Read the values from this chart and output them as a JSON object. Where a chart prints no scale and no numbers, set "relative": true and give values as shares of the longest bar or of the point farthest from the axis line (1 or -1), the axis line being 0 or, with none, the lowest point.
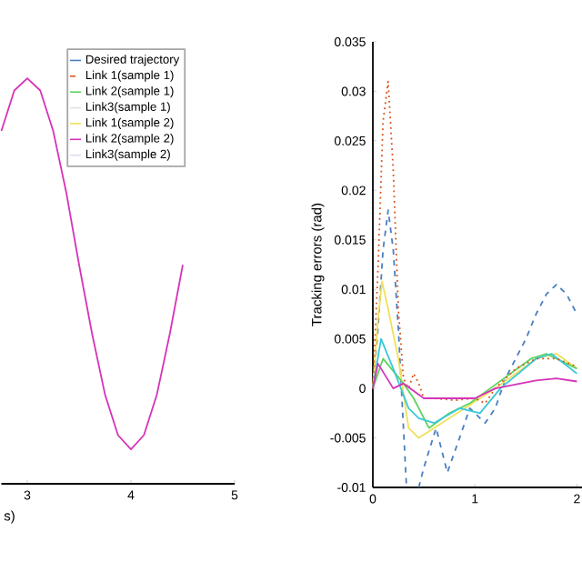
{
  "chart_data": [
    {
      "type": "line",
      "relative": true,
      "xlabel": "s)",
      "xlim": [
        2.75,
        5
      ],
      "xticks": [
        3,
        4,
        5
      ],
      "tick_labels": "x",
      "legend": "top right",
      "grid": false,
      "marker": "none",
      "x": [
        2.75,
        2.875,
        3,
        3.125,
        3.25,
        3.375,
        3.5,
        3.625,
        3.75,
        3.875,
        4,
        4.125,
        4.25,
        4.375,
        4.5
      ],
      "series": [
        {
          "name": "Desired trajectory",
          "color": "#4a7fc0",
          "line_style": "solid",
          "values": [
            null,
            null,
            null,
            null,
            null,
            null,
            null,
            null,
            null,
            null,
            null,
            null,
            null,
            null,
            null
          ]
        },
        {
          "name": "Link 1(sample 1)",
          "color": "#d95319",
          "line_style": "dashed",
          "values": [
            null,
            null,
            null,
            null,
            null,
            null,
            null,
            null,
            null,
            null,
            null,
            null,
            null,
            null,
            null
          ]
        },
        {
          "name": "Link 2(sample 1)",
          "color": "#5fd35f",
          "line_style": "solid",
          "values": [
            null,
            null,
            null,
            null,
            null,
            null,
            null,
            null,
            null,
            null,
            null,
            null,
            null,
            null,
            null
          ]
        },
        {
          "name": "Link3(sample 1)",
          "color": "#e2e2e2",
          "line_style": "solid",
          "values": [
            null,
            null,
            null,
            null,
            null,
            null,
            null,
            null,
            null,
            null,
            null,
            null,
            null,
            null,
            null
          ]
        },
        {
          "name": "Link 1(sample 2)",
          "color": "#f0e05a",
          "line_style": "solid",
          "values": [
            null,
            null,
            null,
            null,
            null,
            null,
            null,
            null,
            null,
            null,
            null,
            null,
            null,
            null,
            null
          ]
        },
        {
          "name": "Link 2(sample 2)",
          "color": "#d633b8",
          "line_style": "solid",
          "values": [
            0.87,
            0.97,
            1,
            0.97,
            0.87,
            0.72,
            0.54,
            0.37,
            0.22,
            0.12,
            0.085,
            0.12,
            0.22,
            0.37,
            0.54
          ]
        },
        {
          "name": "Link3(sample 2)",
          "color": "#dcdcf0",
          "line_style": "solid",
          "values": [
            null,
            null,
            null,
            null,
            null,
            null,
            null,
            null,
            null,
            null,
            null,
            null,
            null,
            null,
            null
          ]
        }
      ]
    },
    {
      "type": "line",
      "ylabel": "Tracking errors (rad)",
      "xlim": [
        0,
        2.05
      ],
      "xticks": [
        0,
        1,
        2
      ],
      "ylim": [
        -0.01,
        0.035
      ],
      "yticks": [
        -0.01,
        -0.005,
        0,
        0.005,
        0.01,
        0.015,
        0.02,
        0.025,
        0.03,
        0.035
      ],
      "grid": false,
      "marker": "none",
      "series": [
        {
          "color": "#4a7fc0",
          "line_style": "dashed",
          "x": [
            0,
            0.05,
            0.1,
            0.15,
            0.2,
            0.25,
            0.3,
            0.33,
            0.39,
            0.45,
            0.5,
            0.62,
            0.73,
            0.85,
            0.95,
            1.05,
            1.1,
            1.2,
            1.3,
            1.4,
            1.5,
            1.6,
            1.7,
            1.8,
            1.9,
            2.0
          ],
          "values": [
            0,
            0.006,
            0.014,
            0.018,
            0.014,
            0.006,
            -0.004,
            -0.01,
            null,
            -0.01,
            -0.008,
            -0.004,
            -0.0085,
            -0.005,
            -0.002,
            -0.003,
            -0.0035,
            -0.002,
            0.001,
            0.003,
            0.005,
            0.0075,
            0.0095,
            0.0105,
            0.0095,
            0.0075
          ]
        },
        {
          "color": "#f0e05a",
          "line_style": "solid",
          "x": [
            0,
            0.05,
            0.09,
            0.15,
            0.25,
            0.35,
            0.45,
            0.6,
            0.9,
            1.2,
            1.6,
            1.8,
            2.0
          ],
          "values": [
            0,
            0.007,
            0.0108,
            0.008,
            0.003,
            -0.004,
            -0.005,
            -0.004,
            -0.002,
            0,
            0.003,
            0.0035,
            0.002
          ]
        },
        {
          "color": "#5fd35f",
          "line_style": "solid",
          "x": [
            0,
            0.1,
            0.3,
            0.4,
            0.55,
            0.75,
            0.95,
            1.15,
            1.55,
            1.7,
            2.0
          ],
          "values": [
            0,
            0.003,
            0.0005,
            -0.001,
            -0.004,
            -0.0025,
            -0.0015,
            0,
            0.003,
            0.0035,
            0.002
          ]
        },
        {
          "color": "#3cc8d8",
          "line_style": "solid",
          "x": [
            0,
            0.08,
            0.2,
            0.35,
            0.45,
            0.6,
            0.85,
            1.05,
            1.25,
            1.6,
            1.75,
            2.0
          ],
          "values": [
            0,
            0.005,
            0.002,
            -0.002,
            -0.003,
            -0.0035,
            -0.002,
            -0.0025,
            0,
            0.003,
            0.0035,
            0.0015
          ]
        },
        {
          "color": "#d95319",
          "line_style": "dotted",
          "x": [
            0,
            0.05,
            0.1,
            0.15,
            0.2,
            0.25,
            0.3,
            0.35,
            0.4,
            0.45,
            0.5,
            0.6,
            0.8,
            1.0,
            1.1,
            1.2,
            1.4,
            1.6,
            1.8,
            2.0
          ],
          "values": [
            0,
            0.012,
            0.027,
            0.031,
            0.022,
            0.008,
            0.001,
            0,
            0.0015,
            0.0005,
            -0.001,
            -0.001,
            -0.0012,
            -0.001,
            -0.0015,
            0,
            0.002,
            0.003,
            0.003,
            0.0022
          ]
        },
        {
          "color": "#d633b8",
          "line_style": "solid",
          "x": [
            0,
            0.05,
            0.2,
            0.3,
            0.5,
            1.0,
            1.2,
            1.6,
            1.8,
            2.0
          ],
          "values": [
            0,
            0.0025,
            0,
            0.0005,
            -0.001,
            -0.001,
            0,
            0.0008,
            0.001,
            0.0007
          ]
        }
      ]
    }
  ]
}
